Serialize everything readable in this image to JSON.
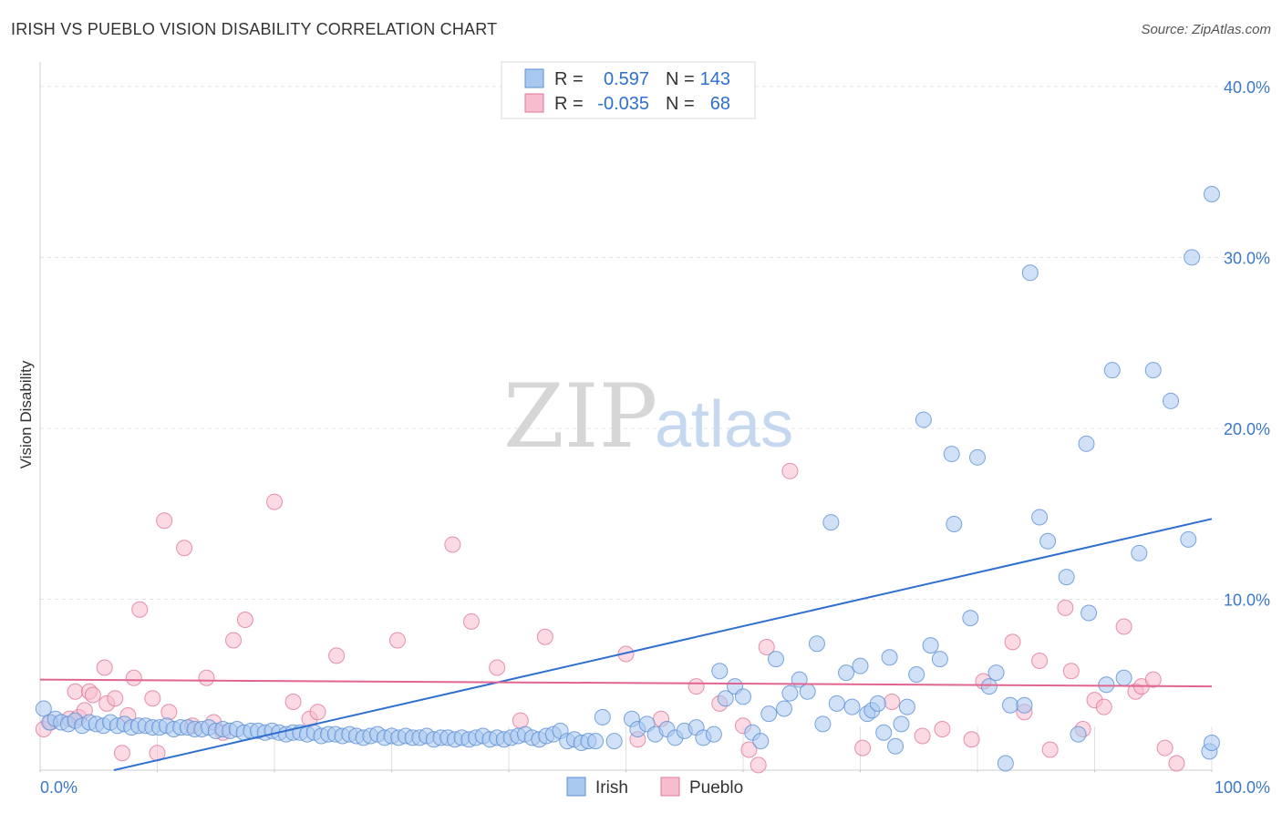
{
  "header": {
    "title": "IRISH VS PUEBLO VISION DISABILITY CORRELATION CHART",
    "source": "Source: ZipAtlas.com"
  },
  "watermark": {
    "zip": "ZIP",
    "atlas": "atlas"
  },
  "legend": {
    "r_label": "R =",
    "n_label": "N =",
    "items": [
      {
        "series": "Irish",
        "r": "0.597",
        "n": "143",
        "color": "#a9c8f0",
        "edge": "#5b8fd6"
      },
      {
        "series": "Pueblo",
        "r": "-0.035",
        "n": "68",
        "color": "#f7bccd",
        "edge": "#e07898"
      }
    ]
  },
  "chart_data": {
    "type": "scatter",
    "title": "IRISH VS PUEBLO VISION DISABILITY CORRELATION CHART",
    "xlabel": "",
    "ylabel": "Vision Disability",
    "xlim": [
      0,
      100
    ],
    "ylim": [
      0,
      40
    ],
    "x_tick_labels": [
      "0.0%",
      "100.0%"
    ],
    "y_ticks": [
      10,
      20,
      30,
      40
    ],
    "y_tick_labels": [
      "10.0%",
      "20.0%",
      "30.0%",
      "40.0%"
    ],
    "grid": true,
    "series": [
      {
        "name": "Irish",
        "color": "#5b8fd6",
        "fill": "#a9c8f0",
        "trend": {
          "x": [
            6.3,
            100
          ],
          "y": [
            0,
            14.7
          ],
          "color": "#2f6fd0"
        },
        "points": [
          [
            0.3,
            3.6
          ],
          [
            0.8,
            2.8
          ],
          [
            1.3,
            3.0
          ],
          [
            1.8,
            2.8
          ],
          [
            2.4,
            2.7
          ],
          [
            3.0,
            2.9
          ],
          [
            3.6,
            2.6
          ],
          [
            4.2,
            2.8
          ],
          [
            4.8,
            2.7
          ],
          [
            5.4,
            2.6
          ],
          [
            6.0,
            2.8
          ],
          [
            6.6,
            2.6
          ],
          [
            7.2,
            2.7
          ],
          [
            7.8,
            2.5
          ],
          [
            8.4,
            2.6
          ],
          [
            9.0,
            2.6
          ],
          [
            9.6,
            2.5
          ],
          [
            10.2,
            2.5
          ],
          [
            10.8,
            2.6
          ],
          [
            11.4,
            2.4
          ],
          [
            12.0,
            2.5
          ],
          [
            12.6,
            2.5
          ],
          [
            13.2,
            2.4
          ],
          [
            13.8,
            2.4
          ],
          [
            14.4,
            2.5
          ],
          [
            15.0,
            2.3
          ],
          [
            15.6,
            2.4
          ],
          [
            16.2,
            2.3
          ],
          [
            16.8,
            2.4
          ],
          [
            17.4,
            2.2
          ],
          [
            18.0,
            2.3
          ],
          [
            18.6,
            2.3
          ],
          [
            19.2,
            2.2
          ],
          [
            19.8,
            2.3
          ],
          [
            20.4,
            2.2
          ],
          [
            21.0,
            2.1
          ],
          [
            21.6,
            2.2
          ],
          [
            22.2,
            2.2
          ],
          [
            22.8,
            2.1
          ],
          [
            23.4,
            2.2
          ],
          [
            24.0,
            2.0
          ],
          [
            24.6,
            2.1
          ],
          [
            25.2,
            2.1
          ],
          [
            25.8,
            2.0
          ],
          [
            26.4,
            2.1
          ],
          [
            27.0,
            2.0
          ],
          [
            27.6,
            1.9
          ],
          [
            28.2,
            2.0
          ],
          [
            28.8,
            2.1
          ],
          [
            29.4,
            1.9
          ],
          [
            30.0,
            2.0
          ],
          [
            30.6,
            1.9
          ],
          [
            31.2,
            2.0
          ],
          [
            31.8,
            1.9
          ],
          [
            32.4,
            1.9
          ],
          [
            33.0,
            2.0
          ],
          [
            33.6,
            1.8
          ],
          [
            34.2,
            1.9
          ],
          [
            34.8,
            1.9
          ],
          [
            35.4,
            1.8
          ],
          [
            36.0,
            1.9
          ],
          [
            36.6,
            1.8
          ],
          [
            37.2,
            1.9
          ],
          [
            37.8,
            2.0
          ],
          [
            38.4,
            1.8
          ],
          [
            39.0,
            1.9
          ],
          [
            39.6,
            1.8
          ],
          [
            40.2,
            1.9
          ],
          [
            40.8,
            2.0
          ],
          [
            41.4,
            2.1
          ],
          [
            42.0,
            1.9
          ],
          [
            42.6,
            1.8
          ],
          [
            43.2,
            2.0
          ],
          [
            43.8,
            2.1
          ],
          [
            44.4,
            2.3
          ],
          [
            45.0,
            1.7
          ],
          [
            45.6,
            1.8
          ],
          [
            46.2,
            1.6
          ],
          [
            46.8,
            1.7
          ],
          [
            47.4,
            1.7
          ],
          [
            48.0,
            3.1
          ],
          [
            49.0,
            1.7
          ],
          [
            50.5,
            3.0
          ],
          [
            51.0,
            2.4
          ],
          [
            51.8,
            2.7
          ],
          [
            52.5,
            2.1
          ],
          [
            53.5,
            2.4
          ],
          [
            54.2,
            1.9
          ],
          [
            55.0,
            2.3
          ],
          [
            56.0,
            2.5
          ],
          [
            56.6,
            1.9
          ],
          [
            57.5,
            2.1
          ],
          [
            58.0,
            5.8
          ],
          [
            58.5,
            4.2
          ],
          [
            59.3,
            4.9
          ],
          [
            60.0,
            4.3
          ],
          [
            60.8,
            2.2
          ],
          [
            61.5,
            1.7
          ],
          [
            62.2,
            3.3
          ],
          [
            62.8,
            6.5
          ],
          [
            63.5,
            3.6
          ],
          [
            64.0,
            4.5
          ],
          [
            64.8,
            5.3
          ],
          [
            65.5,
            4.6
          ],
          [
            66.3,
            7.4
          ],
          [
            66.8,
            2.7
          ],
          [
            67.5,
            14.5
          ],
          [
            68.0,
            3.9
          ],
          [
            68.8,
            5.7
          ],
          [
            69.3,
            3.7
          ],
          [
            70.0,
            6.1
          ],
          [
            70.6,
            3.3
          ],
          [
            71.0,
            3.5
          ],
          [
            71.5,
            3.9
          ],
          [
            72.0,
            2.2
          ],
          [
            72.5,
            6.6
          ],
          [
            73.0,
            1.4
          ],
          [
            73.5,
            2.7
          ],
          [
            74.0,
            3.7
          ],
          [
            74.8,
            5.6
          ],
          [
            75.4,
            20.5
          ],
          [
            76.0,
            7.3
          ],
          [
            76.8,
            6.5
          ],
          [
            77.8,
            18.5
          ],
          [
            78.0,
            14.4
          ],
          [
            79.4,
            8.9
          ],
          [
            80.0,
            18.3
          ],
          [
            81.0,
            4.9
          ],
          [
            81.6,
            5.7
          ],
          [
            82.4,
            0.4
          ],
          [
            82.8,
            3.8
          ],
          [
            84.0,
            3.8
          ],
          [
            84.5,
            29.1
          ],
          [
            85.3,
            14.8
          ],
          [
            86.0,
            13.4
          ],
          [
            87.6,
            11.3
          ],
          [
            88.6,
            2.1
          ],
          [
            89.3,
            19.1
          ],
          [
            89.5,
            9.2
          ],
          [
            91.0,
            5.0
          ],
          [
            91.5,
            23.4
          ],
          [
            92.5,
            5.4
          ],
          [
            93.8,
            12.7
          ],
          [
            95.0,
            23.4
          ],
          [
            96.5,
            21.6
          ],
          [
            98.0,
            13.5
          ],
          [
            98.3,
            30.0
          ],
          [
            99.8,
            1.1
          ],
          [
            101.8,
            1.6
          ],
          [
            104.5,
            33.7
          ]
        ]
      },
      {
        "name": "Pueblo",
        "color": "#e07898",
        "fill": "#f7bccd",
        "trend": {
          "x": [
            0,
            100
          ],
          "y": [
            5.3,
            4.9
          ],
          "color": "#e06590"
        },
        "points": [
          [
            0.3,
            2.4
          ],
          [
            0.9,
            2.8
          ],
          [
            2.5,
            3.0
          ],
          [
            3.0,
            4.6
          ],
          [
            3.3,
            3.1
          ],
          [
            3.8,
            3.5
          ],
          [
            4.2,
            4.6
          ],
          [
            4.5,
            4.4
          ],
          [
            5.5,
            6.0
          ],
          [
            5.7,
            3.9
          ],
          [
            6.4,
            4.2
          ],
          [
            7.0,
            1.0
          ],
          [
            7.5,
            3.2
          ],
          [
            8.0,
            5.4
          ],
          [
            8.5,
            9.4
          ],
          [
            9.6,
            4.2
          ],
          [
            10.0,
            1.0
          ],
          [
            10.6,
            14.6
          ],
          [
            11.0,
            3.4
          ],
          [
            12.3,
            13.0
          ],
          [
            13.0,
            2.6
          ],
          [
            14.2,
            5.4
          ],
          [
            14.8,
            2.8
          ],
          [
            15.6,
            2.2
          ],
          [
            16.5,
            7.6
          ],
          [
            17.5,
            8.8
          ],
          [
            20.0,
            15.7
          ],
          [
            21.6,
            4.0
          ],
          [
            23.0,
            3.0
          ],
          [
            23.7,
            3.4
          ],
          [
            25.3,
            6.7
          ],
          [
            30.5,
            7.6
          ],
          [
            35.2,
            13.2
          ],
          [
            36.8,
            8.7
          ],
          [
            39.0,
            6.0
          ],
          [
            41.0,
            2.9
          ],
          [
            43.1,
            7.8
          ],
          [
            50.0,
            6.8
          ],
          [
            51.0,
            1.8
          ],
          [
            53.0,
            3.0
          ],
          [
            56.0,
            4.9
          ],
          [
            58.0,
            3.9
          ],
          [
            60.0,
            2.6
          ],
          [
            60.5,
            1.2
          ],
          [
            61.3,
            0.3
          ],
          [
            62.0,
            7.2
          ],
          [
            64.0,
            17.5
          ],
          [
            70.2,
            1.3
          ],
          [
            72.7,
            4.0
          ],
          [
            75.3,
            2.0
          ],
          [
            77.0,
            2.4
          ],
          [
            79.5,
            1.8
          ],
          [
            80.5,
            5.2
          ],
          [
            83.0,
            7.5
          ],
          [
            84.0,
            3.4
          ],
          [
            85.3,
            6.4
          ],
          [
            86.2,
            1.2
          ],
          [
            87.5,
            9.5
          ],
          [
            88.0,
            5.8
          ],
          [
            89.0,
            2.4
          ],
          [
            90.0,
            4.1
          ],
          [
            90.8,
            3.7
          ],
          [
            92.5,
            8.4
          ],
          [
            93.5,
            4.6
          ],
          [
            94.0,
            4.9
          ],
          [
            95.0,
            5.3
          ],
          [
            96.0,
            1.3
          ],
          [
            97.0,
            0.4
          ]
        ]
      }
    ]
  },
  "bottom_legend": [
    "Irish",
    "Pueblo"
  ]
}
